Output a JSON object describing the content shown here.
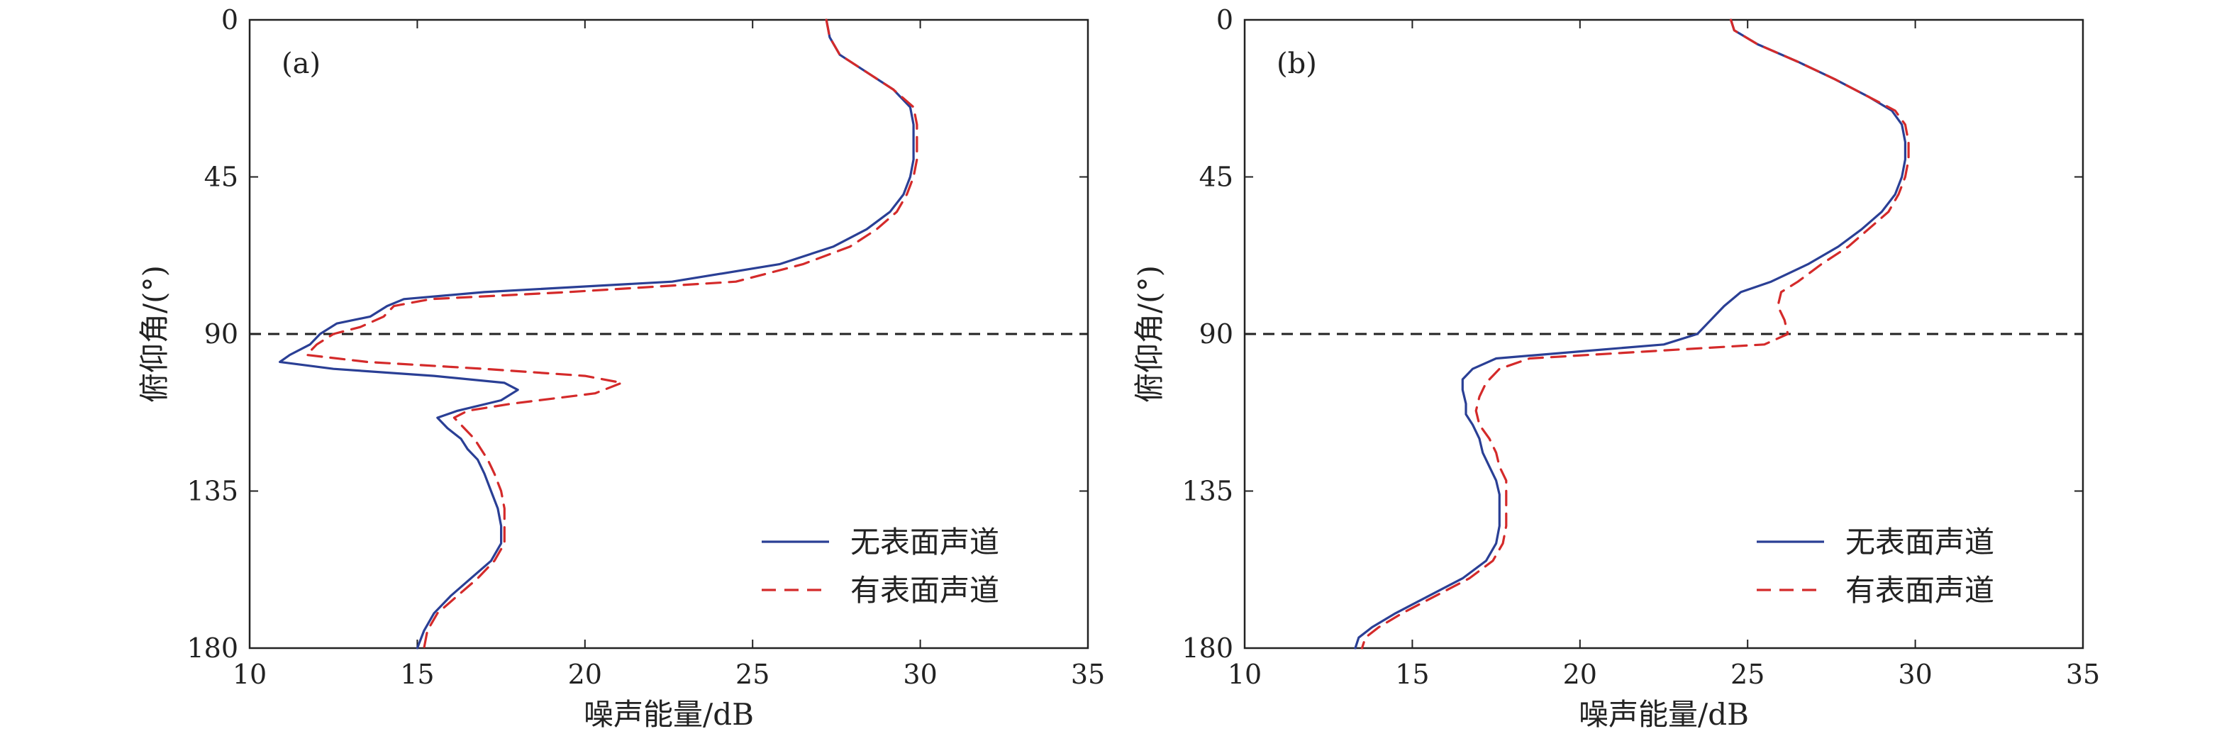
{
  "chart_data": [
    {
      "type": "line",
      "panel_label": "(a)",
      "xlabel": "噪声能量/dB",
      "ylabel": "俯仰角/(°)",
      "xlim": [
        10,
        35
      ],
      "ylim": [
        0,
        180
      ],
      "y_inverted": true,
      "xticks": [
        10,
        15,
        20,
        25,
        30,
        35
      ],
      "yticks": [
        0,
        45,
        90,
        135,
        180
      ],
      "reference_line": {
        "y": 90,
        "style": "dashed",
        "color": "#222222"
      },
      "legend_position": "bottom-right",
      "series": [
        {
          "name": "无表面声道",
          "color": "#2a3f95",
          "dash": "solid",
          "points": [
            [
              27.2,
              0
            ],
            [
              27.3,
              5
            ],
            [
              27.6,
              10
            ],
            [
              28.4,
              15
            ],
            [
              29.2,
              20
            ],
            [
              29.7,
              25
            ],
            [
              29.8,
              30
            ],
            [
              29.8,
              35
            ],
            [
              29.8,
              40
            ],
            [
              29.7,
              45
            ],
            [
              29.5,
              50
            ],
            [
              29.1,
              55
            ],
            [
              28.4,
              60
            ],
            [
              27.4,
              65
            ],
            [
              25.8,
              70
            ],
            [
              22.6,
              75
            ],
            [
              17.0,
              78
            ],
            [
              14.6,
              80
            ],
            [
              14.1,
              82
            ],
            [
              13.6,
              85
            ],
            [
              12.6,
              87
            ],
            [
              12.1,
              90
            ],
            [
              11.8,
              93
            ],
            [
              11.2,
              96
            ],
            [
              10.9,
              98
            ],
            [
              12.5,
              100
            ],
            [
              15.5,
              102
            ],
            [
              17.6,
              104
            ],
            [
              18.0,
              106
            ],
            [
              17.5,
              109
            ],
            [
              16.2,
              112
            ],
            [
              15.6,
              114
            ],
            [
              15.9,
              117
            ],
            [
              16.3,
              120
            ],
            [
              16.5,
              123
            ],
            [
              16.8,
              126
            ],
            [
              17.0,
              130
            ],
            [
              17.2,
              135
            ],
            [
              17.4,
              140
            ],
            [
              17.5,
              145
            ],
            [
              17.5,
              150
            ],
            [
              17.2,
              155
            ],
            [
              16.6,
              160
            ],
            [
              16.0,
              165
            ],
            [
              15.5,
              170
            ],
            [
              15.2,
              175
            ],
            [
              15.0,
              180
            ]
          ]
        },
        {
          "name": "有表面声道",
          "color": "#d42a2a",
          "dash": "dashed",
          "points": [
            [
              27.2,
              0
            ],
            [
              27.3,
              5
            ],
            [
              27.6,
              10
            ],
            [
              28.4,
              15
            ],
            [
              29.2,
              20
            ],
            [
              29.8,
              25
            ],
            [
              29.9,
              30
            ],
            [
              29.9,
              35
            ],
            [
              29.9,
              40
            ],
            [
              29.8,
              45
            ],
            [
              29.6,
              50
            ],
            [
              29.3,
              55
            ],
            [
              28.7,
              60
            ],
            [
              27.9,
              65
            ],
            [
              26.5,
              70
            ],
            [
              24.5,
              75
            ],
            [
              19.5,
              78
            ],
            [
              15.4,
              80
            ],
            [
              14.3,
              82
            ],
            [
              14.0,
              85
            ],
            [
              13.3,
              88
            ],
            [
              12.5,
              90
            ],
            [
              12.0,
              93
            ],
            [
              11.7,
              96
            ],
            [
              13.5,
              98
            ],
            [
              17.0,
              100
            ],
            [
              20.0,
              102
            ],
            [
              21.1,
              104
            ],
            [
              20.3,
              107
            ],
            [
              17.8,
              110
            ],
            [
              16.5,
              112
            ],
            [
              16.1,
              114
            ],
            [
              16.4,
              117
            ],
            [
              16.7,
              120
            ],
            [
              16.9,
              123
            ],
            [
              17.1,
              126
            ],
            [
              17.3,
              130
            ],
            [
              17.5,
              135
            ],
            [
              17.6,
              140
            ],
            [
              17.6,
              145
            ],
            [
              17.6,
              150
            ],
            [
              17.3,
              155
            ],
            [
              16.8,
              160
            ],
            [
              16.2,
              165
            ],
            [
              15.6,
              170
            ],
            [
              15.3,
              175
            ],
            [
              15.2,
              180
            ]
          ]
        }
      ]
    },
    {
      "type": "line",
      "panel_label": "(b)",
      "xlabel": "噪声能量/dB",
      "ylabel": "俯仰角/(°)",
      "xlim": [
        10,
        35
      ],
      "ylim": [
        0,
        180
      ],
      "y_inverted": true,
      "xticks": [
        10,
        15,
        20,
        25,
        30,
        35
      ],
      "yticks": [
        0,
        45,
        90,
        135,
        180
      ],
      "reference_line": {
        "y": 90,
        "style": "dashed",
        "color": "#222222"
      },
      "legend_position": "bottom-right",
      "series": [
        {
          "name": "无表面声道",
          "color": "#2a3f95",
          "dash": "solid",
          "points": [
            [
              24.5,
              0
            ],
            [
              24.6,
              3
            ],
            [
              25.3,
              7
            ],
            [
              26.5,
              12
            ],
            [
              27.6,
              17
            ],
            [
              28.6,
              22
            ],
            [
              29.3,
              26
            ],
            [
              29.6,
              30
            ],
            [
              29.7,
              35
            ],
            [
              29.7,
              40
            ],
            [
              29.6,
              45
            ],
            [
              29.4,
              50
            ],
            [
              29.0,
              55
            ],
            [
              28.4,
              60
            ],
            [
              27.7,
              65
            ],
            [
              26.8,
              70
            ],
            [
              25.7,
              75
            ],
            [
              24.8,
              78
            ],
            [
              24.3,
              82
            ],
            [
              23.9,
              86
            ],
            [
              23.5,
              90
            ],
            [
              22.5,
              93
            ],
            [
              20.0,
              95
            ],
            [
              17.5,
              97
            ],
            [
              16.8,
              100
            ],
            [
              16.5,
              103
            ],
            [
              16.5,
              106
            ],
            [
              16.6,
              110
            ],
            [
              16.6,
              113
            ],
            [
              16.8,
              116
            ],
            [
              17.0,
              120
            ],
            [
              17.1,
              124
            ],
            [
              17.3,
              128
            ],
            [
              17.5,
              132
            ],
            [
              17.6,
              136
            ],
            [
              17.6,
              140
            ],
            [
              17.6,
              145
            ],
            [
              17.5,
              150
            ],
            [
              17.2,
              155
            ],
            [
              16.5,
              160
            ],
            [
              15.5,
              165
            ],
            [
              14.5,
              170
            ],
            [
              13.8,
              174
            ],
            [
              13.4,
              177
            ],
            [
              13.3,
              180
            ]
          ]
        },
        {
          "name": "有表面声道",
          "color": "#d42a2a",
          "dash": "dashed",
          "points": [
            [
              24.5,
              0
            ],
            [
              24.6,
              3
            ],
            [
              25.3,
              7
            ],
            [
              26.5,
              12
            ],
            [
              27.6,
              17
            ],
            [
              28.6,
              22
            ],
            [
              29.4,
              26
            ],
            [
              29.7,
              30
            ],
            [
              29.8,
              35
            ],
            [
              29.8,
              40
            ],
            [
              29.7,
              45
            ],
            [
              29.5,
              50
            ],
            [
              29.2,
              55
            ],
            [
              28.6,
              60
            ],
            [
              28.0,
              65
            ],
            [
              27.2,
              70
            ],
            [
              26.5,
              75
            ],
            [
              26.0,
              78
            ],
            [
              25.9,
              82
            ],
            [
              26.1,
              86
            ],
            [
              26.2,
              90
            ],
            [
              25.5,
              93
            ],
            [
              22.0,
              95
            ],
            [
              18.5,
              97
            ],
            [
              17.6,
              100
            ],
            [
              17.2,
              104
            ],
            [
              17.0,
              108
            ],
            [
              16.9,
              112
            ],
            [
              17.0,
              116
            ],
            [
              17.3,
              120
            ],
            [
              17.5,
              124
            ],
            [
              17.6,
              128
            ],
            [
              17.8,
              132
            ],
            [
              17.8,
              136
            ],
            [
              17.8,
              140
            ],
            [
              17.8,
              145
            ],
            [
              17.7,
              150
            ],
            [
              17.4,
              155
            ],
            [
              16.7,
              160
            ],
            [
              15.7,
              165
            ],
            [
              14.7,
              170
            ],
            [
              14.0,
              174
            ],
            [
              13.6,
              177
            ],
            [
              13.5,
              180
            ]
          ]
        }
      ]
    }
  ]
}
